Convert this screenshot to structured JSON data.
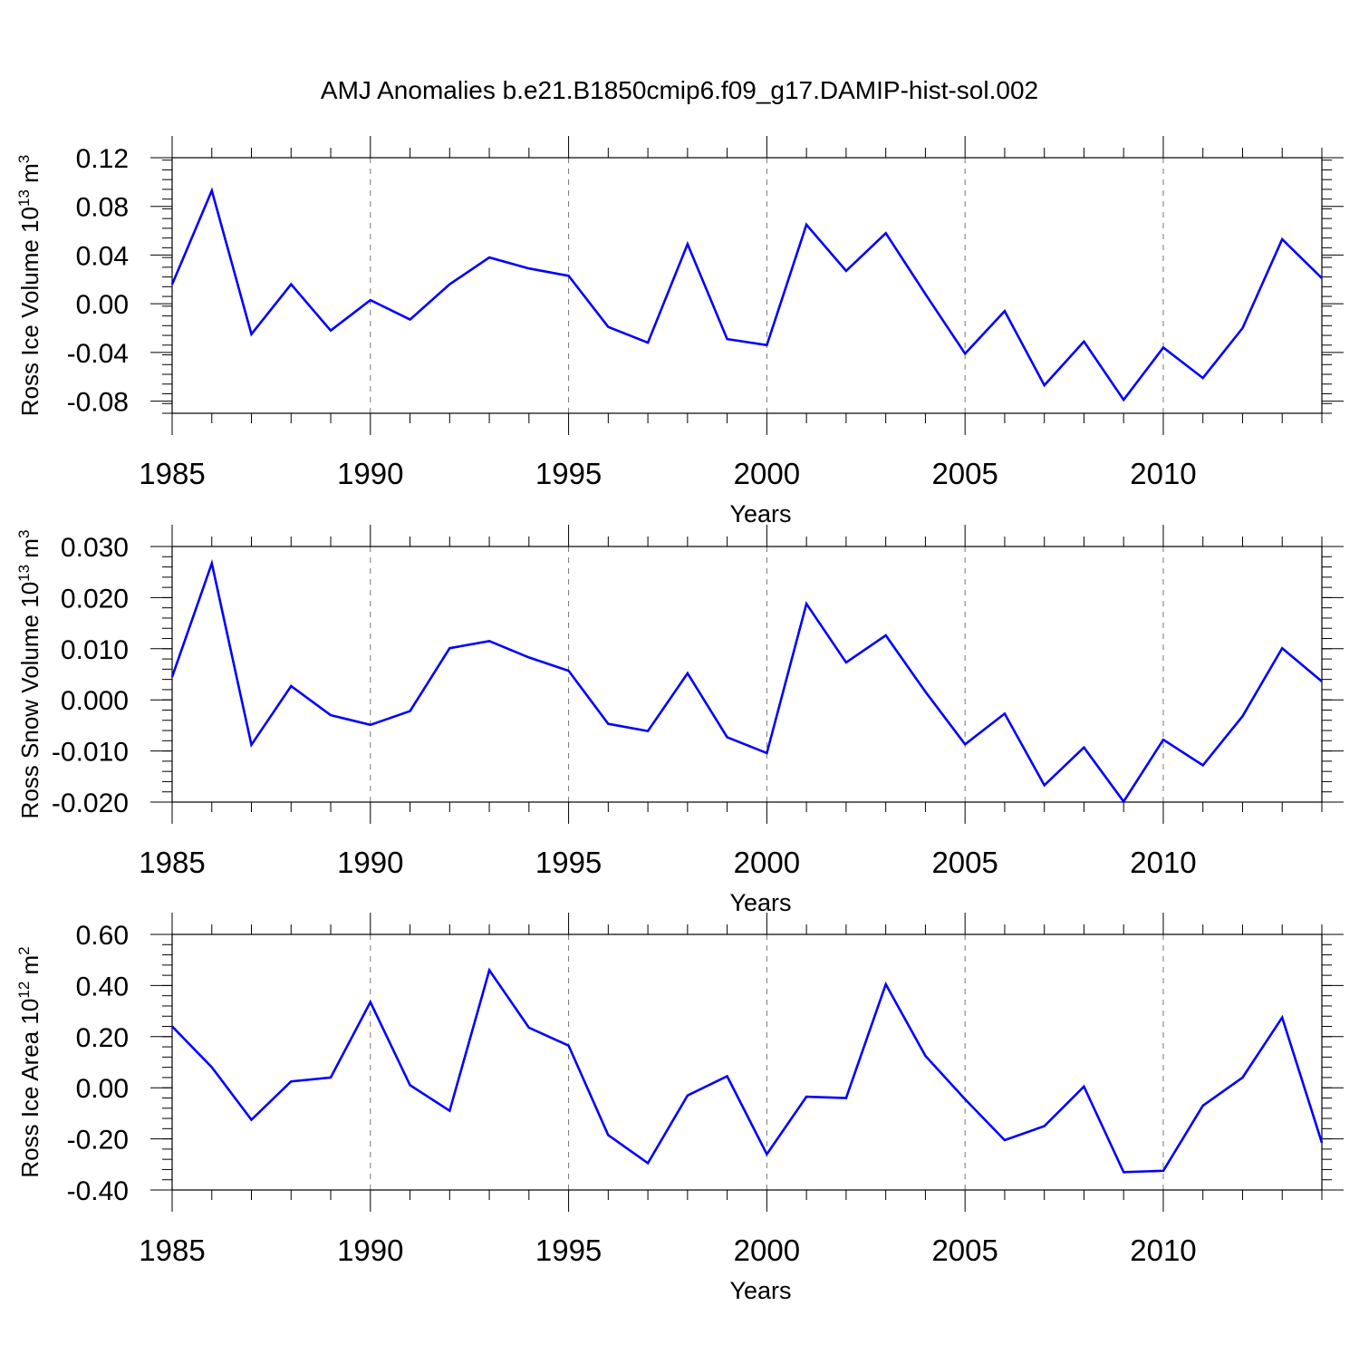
{
  "title": "AMJ Anomalies b.e21.B1850cmip6.f09_g17.DAMIP-hist-sol.002",
  "colors": {
    "line": "#0000ff",
    "axis": "#000000",
    "grid": "#777777"
  },
  "chart_data": [
    {
      "type": "line",
      "title": "",
      "xlabel": "Years",
      "ylabel": "Ross Ice Volume 10",
      "ylabel_exp": "13",
      "ylabel_unit": " m",
      "ylabel_unit_exp": "3",
      "x": [
        1985,
        1986,
        1987,
        1988,
        1989,
        1990,
        1991,
        1992,
        1993,
        1994,
        1995,
        1996,
        1997,
        1998,
        1999,
        2000,
        2001,
        2002,
        2003,
        2004,
        2005,
        2006,
        2007,
        2008,
        2009,
        2010,
        2011,
        2012,
        2013,
        2014
      ],
      "series": [
        {
          "values": [
            0.016,
            0.093,
            -0.025,
            0.016,
            -0.022,
            0.003,
            -0.013,
            0.016,
            0.038,
            0.029,
            0.023,
            -0.019,
            -0.032,
            0.049,
            -0.029,
            -0.034,
            0.065,
            0.027,
            0.058,
            0.008,
            -0.041,
            -0.006,
            -0.067,
            -0.031,
            -0.079,
            -0.036,
            -0.061,
            -0.02,
            0.053,
            0.021
          ]
        }
      ],
      "xlim": [
        1985,
        2014
      ],
      "ylim": [
        -0.09,
        0.12
      ],
      "xticks": [
        "1985",
        "1990",
        "1995",
        "2000",
        "2005",
        "2010"
      ],
      "yticks": [
        "0.12",
        "0.08",
        "0.04",
        "0.00",
        "-0.04",
        "-0.08"
      ],
      "grid": "vertical dashed at labeled years"
    },
    {
      "type": "line",
      "title": "",
      "xlabel": "Years",
      "ylabel": "Ross Snow Volume 10",
      "ylabel_exp": "13",
      "ylabel_unit": " m",
      "ylabel_unit_exp": "3",
      "x": [
        1985,
        1986,
        1987,
        1988,
        1989,
        1990,
        1991,
        1992,
        1993,
        1994,
        1995,
        1996,
        1997,
        1998,
        1999,
        2000,
        2001,
        2002,
        2003,
        2004,
        2005,
        2006,
        2007,
        2008,
        2009,
        2010,
        2011,
        2012,
        2013,
        2014
      ],
      "series": [
        {
          "values": [
            0.0045,
            0.0267,
            -0.0088,
            0.0027,
            -0.003,
            -0.0049,
            -0.0022,
            0.0101,
            0.0115,
            0.0083,
            0.0057,
            -0.0047,
            -0.0061,
            0.0052,
            -0.0073,
            -0.0104,
            0.0188,
            0.0073,
            0.0126,
            0.0016,
            -0.0087,
            -0.0027,
            -0.0167,
            -0.0093,
            -0.0199,
            -0.0078,
            -0.0128,
            -0.0032,
            0.0101,
            0.0036
          ]
        }
      ],
      "xlim": [
        1985,
        2014
      ],
      "ylim": [
        -0.02,
        0.03
      ],
      "xticks": [
        "1985",
        "1990",
        "1995",
        "2000",
        "2005",
        "2010"
      ],
      "yticks": [
        "0.030",
        "0.020",
        "0.010",
        "0.000",
        "-0.010",
        "-0.020"
      ],
      "grid": "vertical dashed at labeled years"
    },
    {
      "type": "line",
      "title": "",
      "xlabel": "Years",
      "ylabel": "Ross Ice Area 10",
      "ylabel_exp": "12",
      "ylabel_unit": " m",
      "ylabel_unit_exp": "2",
      "x": [
        1985,
        1986,
        1987,
        1988,
        1989,
        1990,
        1991,
        1992,
        1993,
        1994,
        1995,
        1996,
        1997,
        1998,
        1999,
        2000,
        2001,
        2002,
        2003,
        2004,
        2005,
        2006,
        2007,
        2008,
        2009,
        2010,
        2011,
        2012,
        2013,
        2014
      ],
      "series": [
        {
          "values": [
            0.24,
            0.08,
            -0.125,
            0.025,
            0.04,
            0.335,
            0.01,
            -0.09,
            0.46,
            0.235,
            0.165,
            -0.185,
            -0.295,
            -0.03,
            0.045,
            -0.26,
            -0.035,
            -0.04,
            0.405,
            0.125,
            -0.045,
            -0.205,
            -0.15,
            0.005,
            -0.33,
            -0.325,
            -0.07,
            0.04,
            0.275,
            -0.215
          ]
        }
      ],
      "xlim": [
        1985,
        2014
      ],
      "ylim": [
        -0.4,
        0.6
      ],
      "xticks": [
        "1985",
        "1990",
        "1995",
        "2000",
        "2005",
        "2010"
      ],
      "yticks": [
        "0.60",
        "0.40",
        "0.20",
        "0.00",
        "-0.20",
        "-0.40"
      ],
      "grid": "vertical dashed at labeled years"
    }
  ]
}
